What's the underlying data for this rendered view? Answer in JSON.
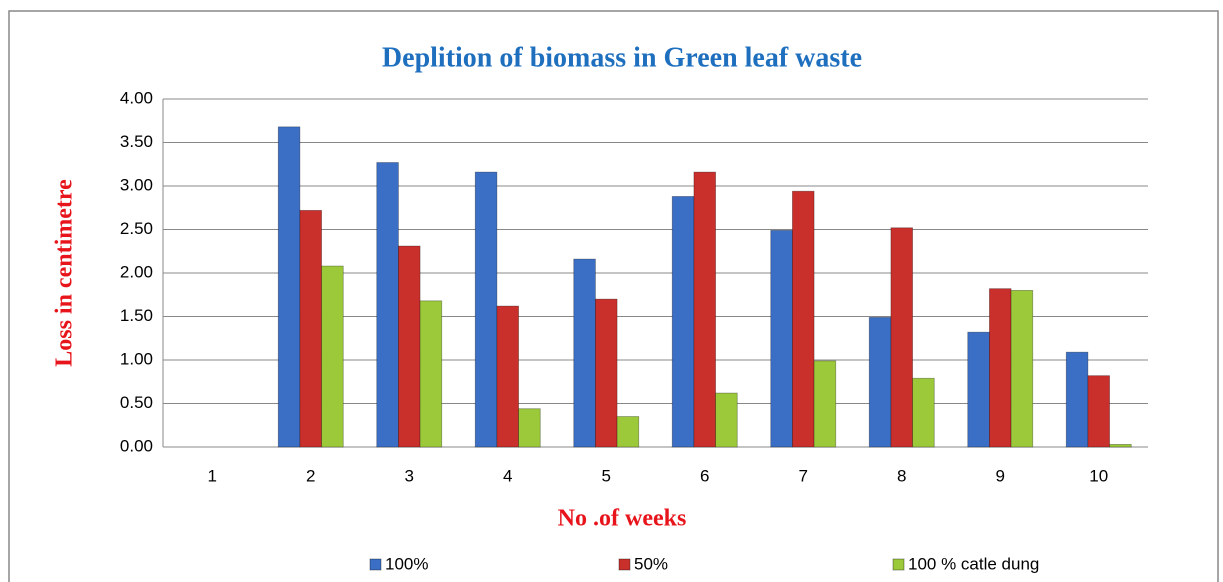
{
  "chart_data": {
    "type": "bar",
    "title": "Deplition of biomass in Green leaf waste",
    "x_label": "No .of weeks",
    "y_label": "Loss in centimetre",
    "categories": [
      "1",
      "2",
      "3",
      "4",
      "5",
      "6",
      "7",
      "8",
      "9",
      "10"
    ],
    "series": [
      {
        "name": "100%",
        "color": "#3b6fc6",
        "values": [
          0,
          3.68,
          3.27,
          3.16,
          2.16,
          2.88,
          2.49,
          1.49,
          1.32,
          1.09
        ]
      },
      {
        "name": "50%",
        "color": "#c9302c",
        "values": [
          0,
          2.72,
          2.31,
          1.62,
          1.7,
          3.16,
          2.94,
          2.52,
          1.82,
          0.82
        ]
      },
      {
        "name": "100 % catle dung",
        "color": "#9bc93a",
        "values": [
          0,
          2.08,
          1.68,
          0.44,
          0.35,
          0.62,
          0.99,
          0.79,
          1.8,
          0.03
        ]
      }
    ],
    "ylim": [
      0,
      4
    ],
    "yticks": [
      {
        "value": 0,
        "label": "0.00"
      },
      {
        "value": 0.5,
        "label": "0.50"
      },
      {
        "value": 1,
        "label": "1.00"
      },
      {
        "value": 1.5,
        "label": "1.50"
      },
      {
        "value": 2,
        "label": "2.00"
      },
      {
        "value": 2.5,
        "label": "2.50"
      },
      {
        "value": 3,
        "label": "3.00"
      },
      {
        "value": 3.5,
        "label": "3.50"
      },
      {
        "value": 4,
        "label": "4.00"
      }
    ],
    "grid": true,
    "legend": "bottom"
  }
}
